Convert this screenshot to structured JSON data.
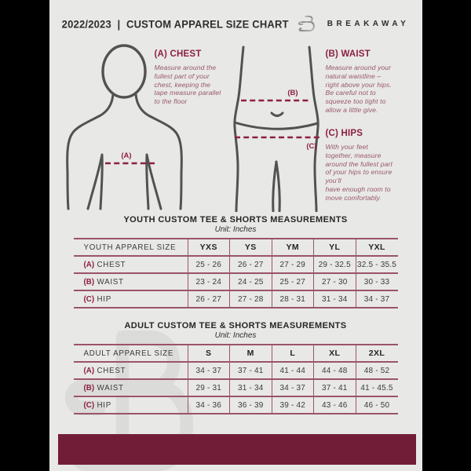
{
  "header": {
    "title": "2022/2023  |  CUSTOM APPAREL SIZE CHART",
    "brand": "BREAKAWAY"
  },
  "instructions": {
    "chest": {
      "heading": "(A) CHEST",
      "body": "Measure around the\nfullest part of your\nchest, keeping the\ntape measure parallel\nto the floor"
    },
    "waist": {
      "heading": "(B) WAIST",
      "body": "Measure around your\nnatural waistline –\nright above your hips.\nBe careful not to\nsqueeze too tight to\nallow a little give."
    },
    "hips": {
      "heading": "(C) HIPS",
      "body": "With your feet\ntogether, measure\naround the fullest part\nof your hips to ensure\nyou’ll\nhave enough room to\nmove comfortably."
    }
  },
  "diagram": {
    "chest_label": "(A)",
    "waist_label": "(B)",
    "hips_label": "(C)"
  },
  "youth_table": {
    "title": "YOUTH CUSTOM TEE & SHORTS MEASUREMENTS",
    "unit": "Unit: Inches",
    "header_row": [
      "YOUTH APPAREL SIZE",
      "YXS",
      "YS",
      "YM",
      "YL",
      "YXL"
    ],
    "rows": [
      {
        "prefix": "(A)",
        "label": "CHEST",
        "values": [
          "25 - 26",
          "26 - 27",
          "27 - 29",
          "29 - 32.5",
          "32.5 - 35.5"
        ]
      },
      {
        "prefix": "(B)",
        "label": "WAIST",
        "values": [
          "23 - 24",
          "24 - 25",
          "25 - 27",
          "27 - 30",
          "30 - 33"
        ]
      },
      {
        "prefix": "(C)",
        "label": "HIP",
        "values": [
          "26 - 27",
          "27 - 28",
          "28 - 31",
          "31 - 34",
          "34 - 37"
        ]
      }
    ]
  },
  "adult_table": {
    "title": "ADULT CUSTOM TEE & SHORTS MEASUREMENTS",
    "unit": "Unit: Inches",
    "header_row": [
      "ADULT APPAREL SIZE",
      "S",
      "M",
      "L",
      "XL",
      "2XL"
    ],
    "rows": [
      {
        "prefix": "(A)",
        "label": "CHEST",
        "values": [
          "34 - 37",
          "37 - 41",
          "41 - 44",
          "44 - 48",
          "48 - 52"
        ]
      },
      {
        "prefix": "(B)",
        "label": "WAIST",
        "values": [
          "29 - 31",
          "31 - 34",
          "34 - 37",
          "37 - 41",
          "41 - 45.5"
        ]
      },
      {
        "prefix": "(C)",
        "label": "HIP",
        "values": [
          "34 - 36",
          "36 - 39",
          "39 - 42",
          "43 - 46",
          "46 - 50"
        ]
      }
    ]
  },
  "colors": {
    "accent_maroon": "#8c2040",
    "muted_maroon_text": "#97576b",
    "table_border": "#9a5467",
    "footer_bar": "#721d38",
    "body_outline_gray": "#525252",
    "watermark_gray": "#dbdbda",
    "page_background": "#e8e8e7",
    "pillarbox_black": "#000000"
  }
}
